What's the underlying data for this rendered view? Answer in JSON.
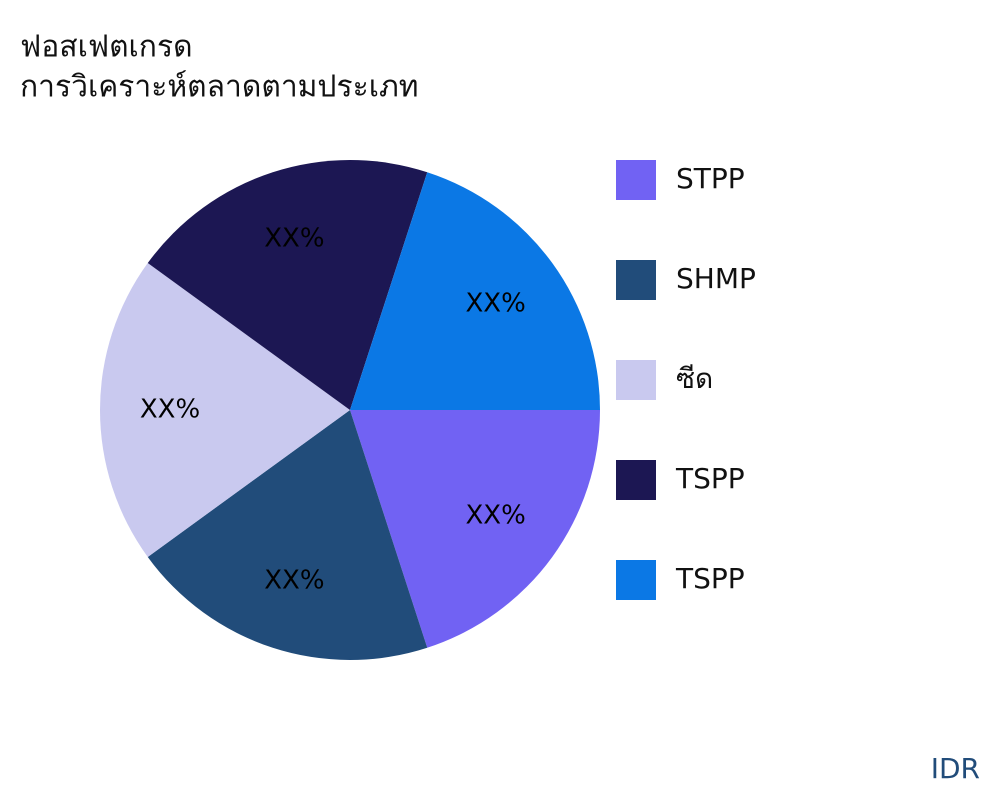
{
  "chart_data": {
    "type": "pie",
    "title": [
      "ฟอสเฟตเกรด",
      "การวิเคราะห์ตลาดตามประเภท"
    ],
    "categories": [
      "STPP",
      "SHMP",
      "ซีด",
      "TSPP",
      "TSPP"
    ],
    "values": [
      20,
      20,
      20,
      20,
      20
    ],
    "value_labels": [
      "XX%",
      "XX%",
      "XX%",
      "XX%",
      "XX%"
    ],
    "colors": [
      "#7162f3",
      "#214c7a",
      "#c9c9ef",
      "#1c1753",
      "#0b78e5"
    ],
    "legend": "right",
    "watermark": "IDR"
  }
}
